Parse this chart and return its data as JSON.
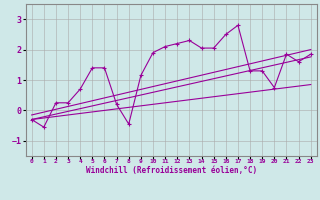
{
  "xlabel": "Windchill (Refroidissement éolien,°C)",
  "ylabel": "",
  "background_color": "#cfe8e8",
  "grid_color": "#aaaaaa",
  "line_color": "#990099",
  "xlim": [
    -0.5,
    23.5
  ],
  "ylim": [
    -1.5,
    3.5
  ],
  "yticks": [
    -1,
    0,
    1,
    2,
    3
  ],
  "xticks": [
    0,
    1,
    2,
    3,
    4,
    5,
    6,
    7,
    8,
    9,
    10,
    11,
    12,
    13,
    14,
    15,
    16,
    17,
    18,
    19,
    20,
    21,
    22,
    23
  ],
  "series1_x": [
    0,
    1,
    2,
    3,
    4,
    5,
    6,
    7,
    8,
    9,
    10,
    11,
    12,
    13,
    14,
    15,
    16,
    17,
    18,
    19,
    20,
    21,
    22,
    23
  ],
  "series1_y": [
    -0.3,
    -0.55,
    0.25,
    0.25,
    0.7,
    1.4,
    1.4,
    0.2,
    -0.45,
    1.15,
    1.9,
    2.1,
    2.2,
    2.3,
    2.05,
    2.05,
    2.5,
    2.8,
    1.3,
    1.3,
    0.75,
    1.85,
    1.6,
    1.85
  ],
  "series2_x": [
    0,
    23
  ],
  "series2_y": [
    -0.15,
    2.0
  ],
  "series3_x": [
    0,
    23
  ],
  "series3_y": [
    -0.3,
    1.76
  ],
  "series4_x": [
    0,
    23
  ],
  "series4_y": [
    -0.3,
    0.85
  ]
}
